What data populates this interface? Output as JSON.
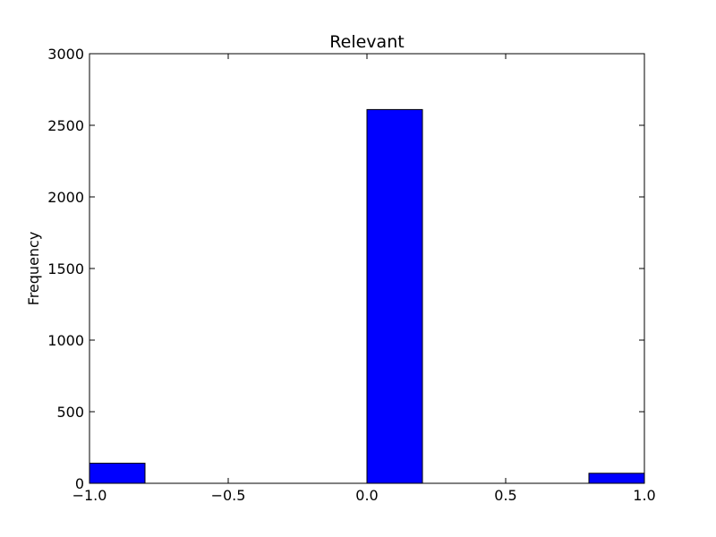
{
  "chart_data": {
    "type": "bar",
    "title": "Relevant",
    "xlabel": "",
    "ylabel": "Frequency",
    "xlim": [
      -1.0,
      1.0
    ],
    "ylim": [
      0,
      3000
    ],
    "bin_width": 0.2,
    "bins": [
      {
        "start": -1.0,
        "value": 140
      },
      {
        "start": -0.8,
        "value": 0
      },
      {
        "start": -0.6,
        "value": 0
      },
      {
        "start": -0.4,
        "value": 0
      },
      {
        "start": -0.2,
        "value": 0
      },
      {
        "start": 0.0,
        "value": 2610
      },
      {
        "start": 0.2,
        "value": 0
      },
      {
        "start": 0.4,
        "value": 0
      },
      {
        "start": 0.6,
        "value": 0
      },
      {
        "start": 0.8,
        "value": 70
      }
    ],
    "x_ticks": [
      {
        "value": -1.0,
        "label": "−1.0"
      },
      {
        "value": -0.5,
        "label": "−0.5"
      },
      {
        "value": 0.0,
        "label": "0.0"
      },
      {
        "value": 0.5,
        "label": "0.5"
      },
      {
        "value": 1.0,
        "label": "1.0"
      }
    ],
    "y_ticks": [
      {
        "value": 0,
        "label": "0"
      },
      {
        "value": 500,
        "label": "500"
      },
      {
        "value": 1000,
        "label": "1000"
      },
      {
        "value": 1500,
        "label": "1500"
      },
      {
        "value": 2000,
        "label": "2000"
      },
      {
        "value": 2500,
        "label": "2500"
      },
      {
        "value": 3000,
        "label": "3000"
      }
    ],
    "bar_color": "#0000ff",
    "edge_color": "#000000",
    "grid": false,
    "legend": "none"
  }
}
